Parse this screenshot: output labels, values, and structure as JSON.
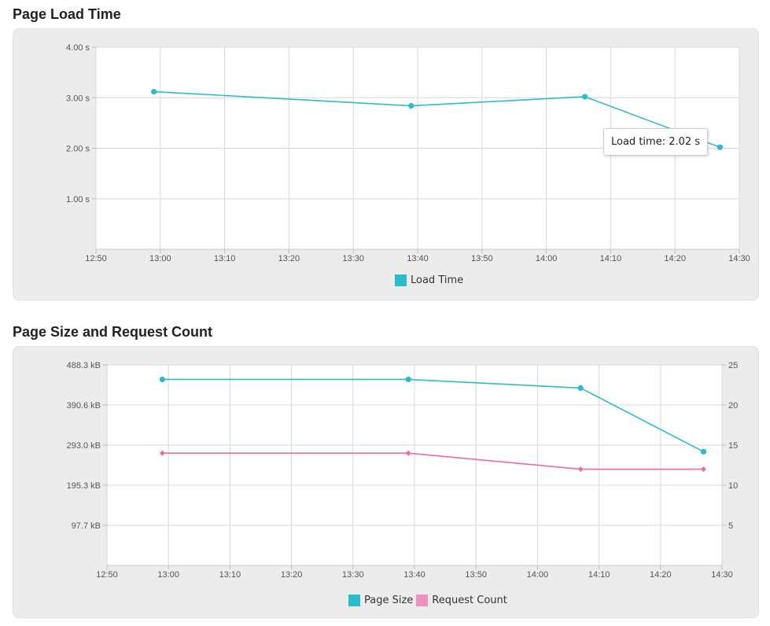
{
  "chart_data": [
    {
      "type": "line",
      "title": "Page Load Time",
      "x": [
        "12:59",
        "13:39",
        "14:06",
        "14:27"
      ],
      "x_ticks": [
        "12:50",
        "13:00",
        "13:10",
        "13:20",
        "13:30",
        "13:40",
        "13:50",
        "14:00",
        "14:10",
        "14:20",
        "14:30"
      ],
      "y_ticks": [
        "4.00 s",
        "3.00 s",
        "2.00 s",
        "1.00 s"
      ],
      "ylim": [
        0,
        4
      ],
      "series": [
        {
          "name": "Load Time",
          "color": "#2bbccc",
          "values": [
            3.12,
            2.84,
            3.02,
            2.02
          ]
        }
      ],
      "tooltip": "Load time: 2.02 s",
      "legend_position": "bottom",
      "grid": true
    },
    {
      "type": "line",
      "title": "Page Size and Request Count",
      "x": [
        "12:59",
        "13:39",
        "14:07",
        "14:27"
      ],
      "x_ticks": [
        "12:50",
        "13:00",
        "13:10",
        "13:20",
        "13:30",
        "13:40",
        "13:50",
        "14:00",
        "14:10",
        "14:20",
        "14:30"
      ],
      "y_ticks_left": [
        "488.3 kB",
        "390.6 kB",
        "293.0 kB",
        "195.3 kB",
        "97.7 kB"
      ],
      "y_ticks_right": [
        "25",
        "20",
        "15",
        "10",
        "5"
      ],
      "ylim_left": [
        0,
        488.3
      ],
      "ylim_right": [
        0,
        25
      ],
      "series": [
        {
          "name": "Page Size",
          "color": "#2bbccc",
          "axis": "left",
          "marker": "circle",
          "values": [
            453,
            453,
            432,
            277
          ]
        },
        {
          "name": "Request Count",
          "color": "#ee6aa7",
          "axis": "right",
          "marker": "diamond",
          "values": [
            14,
            14,
            12,
            12
          ]
        }
      ],
      "legend_position": "bottom",
      "grid": true
    }
  ]
}
